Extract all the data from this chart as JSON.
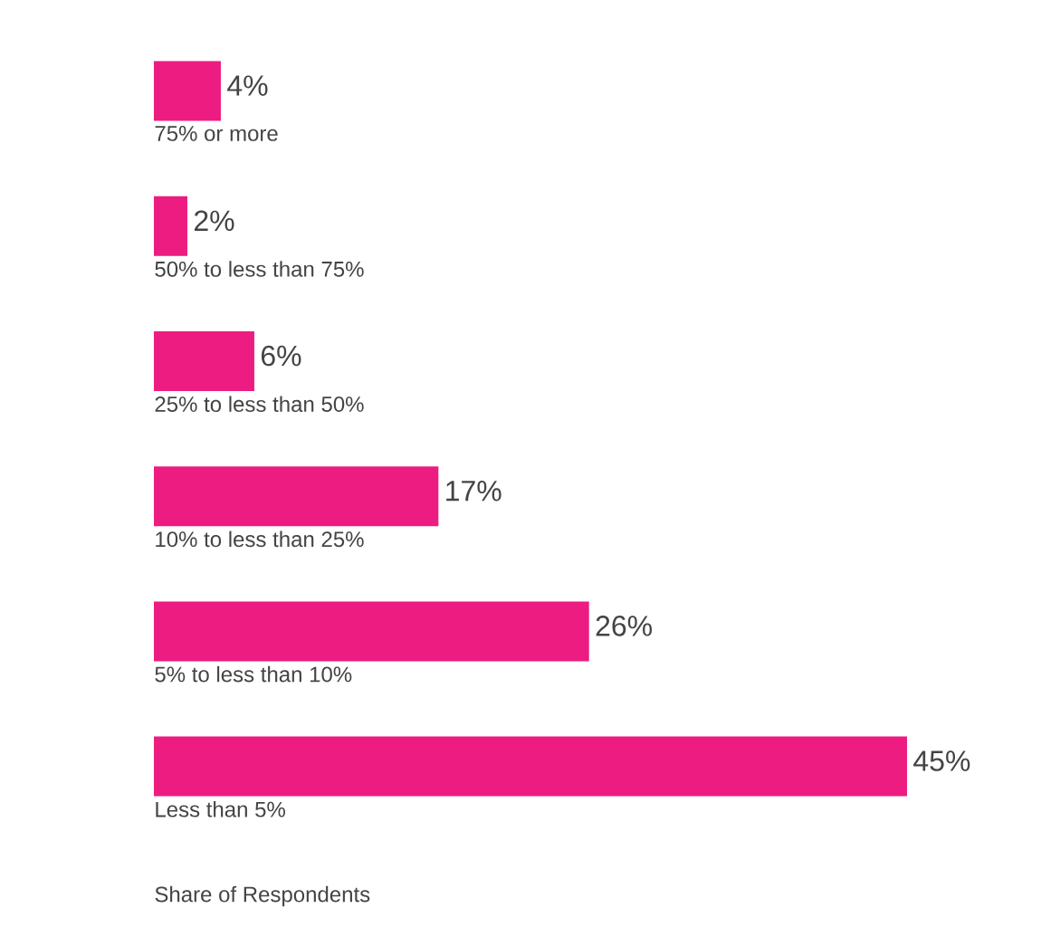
{
  "chart_data": {
    "type": "bar",
    "orientation": "horizontal",
    "xlabel": "Share of Respondents",
    "categories": [
      "75% or more",
      "50% to less than 75%",
      "25% to less than 50%",
      "10% to less than 25%",
      "5% to less than 10%",
      "Less than 5%"
    ],
    "values": [
      4,
      2,
      6,
      17,
      26,
      45
    ],
    "value_labels": [
      "4%",
      "2%",
      "6%",
      "17%",
      "26%",
      "45%"
    ],
    "color": "#ec1c80"
  }
}
